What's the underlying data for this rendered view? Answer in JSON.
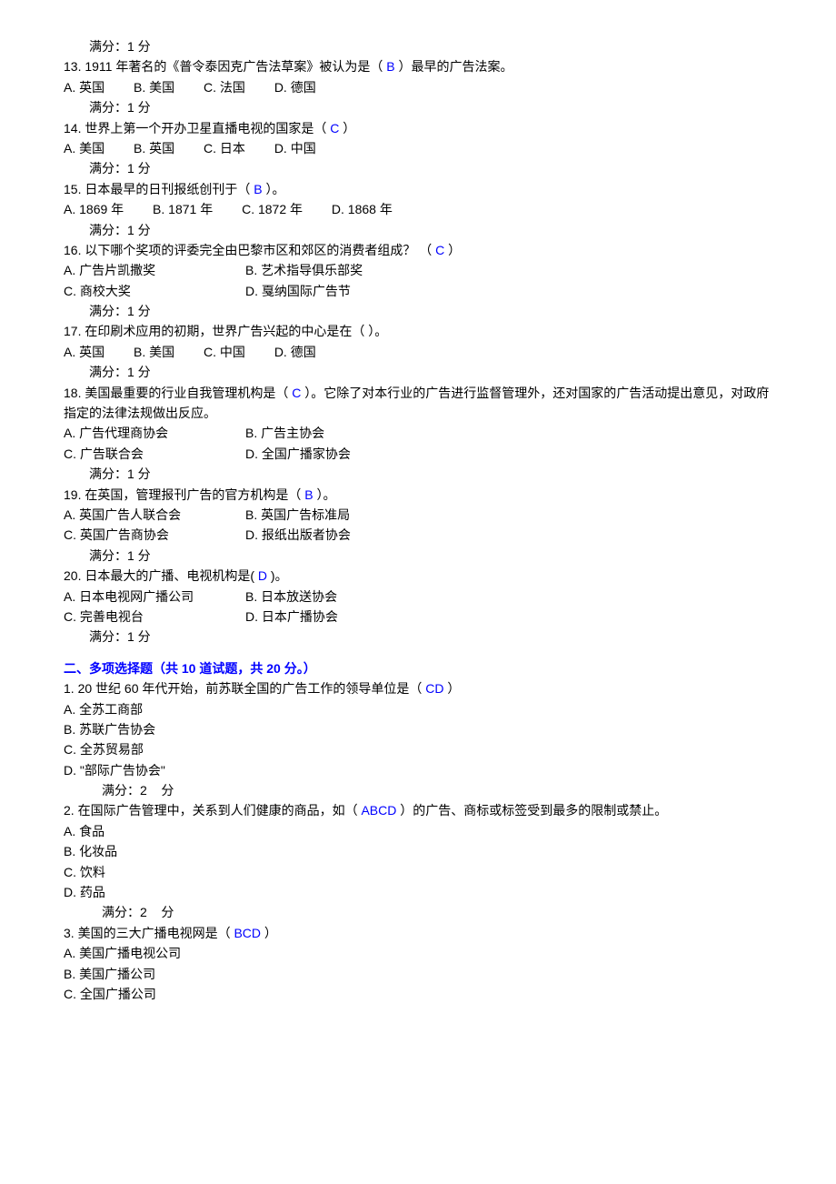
{
  "score_1": "满分：1 分",
  "score_2_pre": "满分：2",
  "score_2_suf": "分",
  "q13": {
    "text_pre": "13.  1911 年著名的《普令泰因克广告法草案》被认为是（  ",
    "ans": "B",
    "text_post": " ）最早的广告法案。",
    "a": "A.  英国",
    "b": "B. 美国",
    "c": "C. 法国",
    "d": "D. 德国"
  },
  "q14": {
    "text_pre": "14.  世界上第一个开办卫星直播电视的国家是（   ",
    "ans": "C",
    "text_post": "  ）",
    "a": "A.  美国",
    "b": "B. 英国",
    "c": "C. 日本",
    "d": "D. 中国"
  },
  "q15": {
    "text_pre": "15.  日本最早的日刊报纸创刊于（   ",
    "ans": "B",
    "text_post": "  ）。",
    "a": "A. 1869 年",
    "b": "B. 1871 年",
    "c": "C. 1872 年",
    "d": "D. 1868 年"
  },
  "q16": {
    "text_pre": "16.  以下哪个奖项的评委完全由巴黎市区和郊区的消费者组成？ （   ",
    "ans": "C",
    "text_post": "  ）",
    "a": "A.  广告片凯撒奖",
    "b": "B.  艺术指导俱乐部奖",
    "c": "C.  商校大奖",
    "d": "D.  戛纳国际广告节"
  },
  "q17": {
    "text": "17.  在印刷术应用的初期，世界广告兴起的中心是在（      ）。",
    "a": "A.  英国",
    "b": "B. 美国",
    "c": "C. 中国",
    "d": "D. 德国"
  },
  "q18": {
    "text_pre": "18.  美国最重要的行业自我管理机构是（ ",
    "ans": " C ",
    "text_post": "  ）。它除了对本行业的广告进行监督管理外，还对国家的广告活动提出意见，对政府指定的法律法规做出反应。",
    "a": "A.  广告代理商协会",
    "b": "B.  广告主协会",
    "c": "C.  广告联合会",
    "d": "D.  全国广播家协会"
  },
  "q19": {
    "text_pre": "19.  在英国，管理报刊广告的官方机构是（   ",
    "ans": "B",
    "text_post": "  ）。",
    "a": "A.  英国广告人联合会",
    "b": "B.  英国广告标准局",
    "c": "C.  英国广告商协会",
    "d": "D.  报纸出版者协会"
  },
  "q20": {
    "text_pre": "20.  日本最大的广播、电视机构是(  ",
    "ans": "D",
    "text_post": "  )。",
    "a": "A.  日本电视网广播公司",
    "b": "B.  日本放送协会",
    "c": "C.  完善电视台",
    "d": "D.  日本广播协会"
  },
  "section2": {
    "title": "二、多项选择题（共   10   道试题，共   20   分。）"
  },
  "mq1": {
    "text_pre": "1.      20 世纪 60 年代开始，前苏联全国的广告工作的领导单位是（    ",
    "ans": "CD",
    "text_post": "      ）",
    "a": "A.  全苏工商部",
    "b": "B.  苏联广告协会",
    "c": "C.  全苏贸易部",
    "d": "D. \"部际广告协会\""
  },
  "mq2": {
    "text_pre": "2.      在国际广告管理中，关系到人们健康的商品，如（      ",
    "ans": "ABCD",
    "text_post": "     ）的广告、商标或标签受到最多的限制或禁止。",
    "a": "A.  食品",
    "b": "B.  化妆品",
    "c": "C.  饮料",
    "d": "D.  药品"
  },
  "mq3": {
    "text_pre": "3.      美国的三大广播电视网是（      ",
    "ans": "BCD",
    "text_post": "      ）",
    "a": "A.  美国广播电视公司",
    "b": "B.  美国广播公司",
    "c": "C.  全国广播公司"
  }
}
